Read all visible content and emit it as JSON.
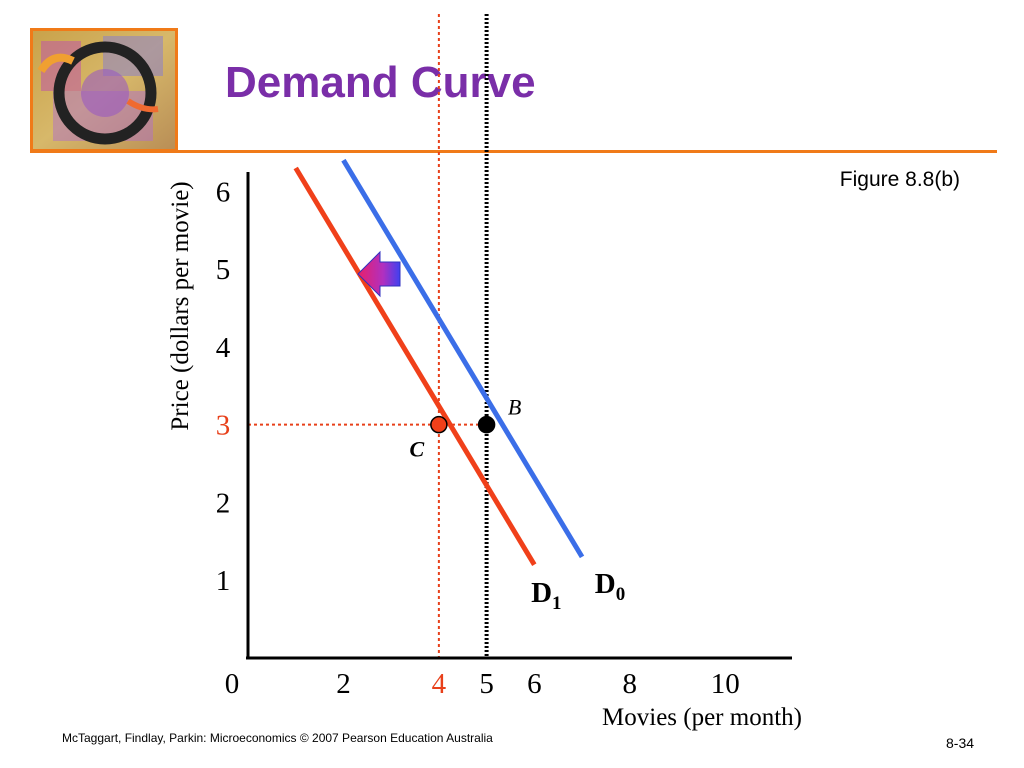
{
  "slide": {
    "title": "Demand Curve",
    "figure_label": "Figure 8.8(b)",
    "footer": "McTaggart, Findlay, Parkin: Microeconomics © 2007 Pearson Education Australia",
    "page_number": "8-34"
  },
  "colors": {
    "title": "#7a2ea8",
    "accent_orange": "#f07a18",
    "d0_line": "#3b6ee8",
    "d1_line": "#f0401a",
    "highlight": "#e8401a"
  },
  "chart_data": {
    "type": "line",
    "xlabel": "Movies (per month)",
    "ylabel": "Price (dollars per movie)",
    "xlim": [
      0,
      11.4
    ],
    "ylim": [
      0,
      6.3
    ],
    "x_ticks": [
      {
        "value": 0,
        "label": "0",
        "color": "#000000"
      },
      {
        "value": 2,
        "label": "2",
        "color": "#000000"
      },
      {
        "value": 4,
        "label": "4",
        "color": "#e8401a"
      },
      {
        "value": 5,
        "label": "5",
        "color": "#000000"
      },
      {
        "value": 6,
        "label": "6",
        "color": "#000000"
      },
      {
        "value": 8,
        "label": "8",
        "color": "#000000"
      },
      {
        "value": 10,
        "label": "10",
        "color": "#000000"
      }
    ],
    "y_ticks": [
      {
        "value": 1,
        "label": "1",
        "color": "#000000"
      },
      {
        "value": 2,
        "label": "2",
        "color": "#000000"
      },
      {
        "value": 3,
        "label": "3",
        "color": "#e8401a"
      },
      {
        "value": 4,
        "label": "4",
        "color": "#000000"
      },
      {
        "value": 5,
        "label": "5",
        "color": "#000000"
      },
      {
        "value": 6,
        "label": "6",
        "color": "#000000"
      }
    ],
    "series": [
      {
        "name": "D0",
        "label_main": "D",
        "label_sub": "0",
        "color": "#3b6ee8",
        "x": [
          2.0,
          7.0
        ],
        "y": [
          6.4,
          1.3
        ]
      },
      {
        "name": "D1",
        "label_main": "D",
        "label_sub": "1",
        "color": "#f0401a",
        "x": [
          1.0,
          6.0
        ],
        "y": [
          6.3,
          1.2
        ]
      }
    ],
    "points": [
      {
        "label": "B",
        "x": 5,
        "y": 3,
        "color": "#000000"
      },
      {
        "label": "C",
        "x": 4,
        "y": 3,
        "color": "#f0401a"
      }
    ],
    "reference_lines": [
      {
        "orientation": "vertical",
        "value": 5,
        "color": "#000000",
        "style": "dotted-thick"
      },
      {
        "orientation": "vertical",
        "value": 4,
        "color": "#e8401a",
        "style": "dotted"
      },
      {
        "orientation": "horizontal",
        "value": 3,
        "color": "#e8401a",
        "style": "dotted"
      }
    ],
    "shift_arrow": "left",
    "grid": false
  }
}
